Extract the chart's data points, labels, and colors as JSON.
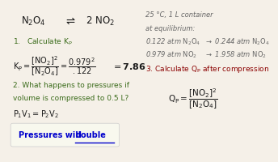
{
  "bg_color": "#f5f0e8",
  "reaction_left": "N₂O₄",
  "reaction_right": "2 NO₂",
  "condition": "25 °C, 1 L container",
  "at_eq": "at equilibrium:",
  "eq1_left": "0.122 atm N₂O₄",
  "eq1_right": "→ 0.244 atm N₂O₄",
  "eq2_left": "0.979 atm NO₂",
  "eq2_right": "→ 1.958 atm NO₂",
  "step1": "1.   Calculate K",
  "step2_line1": "2. What happens to pressures if",
  "step2_line2": "volume is compressed to 0.5 L?",
  "step3": "3. Calculate Q",
  "pressures_text": "Pressures will ",
  "double_text": "double",
  "color_green": "#3a6b1a",
  "color_red": "#8b0000",
  "color_gray": "#666666",
  "color_blue": "#0000cc",
  "color_black": "#1a1a1a"
}
